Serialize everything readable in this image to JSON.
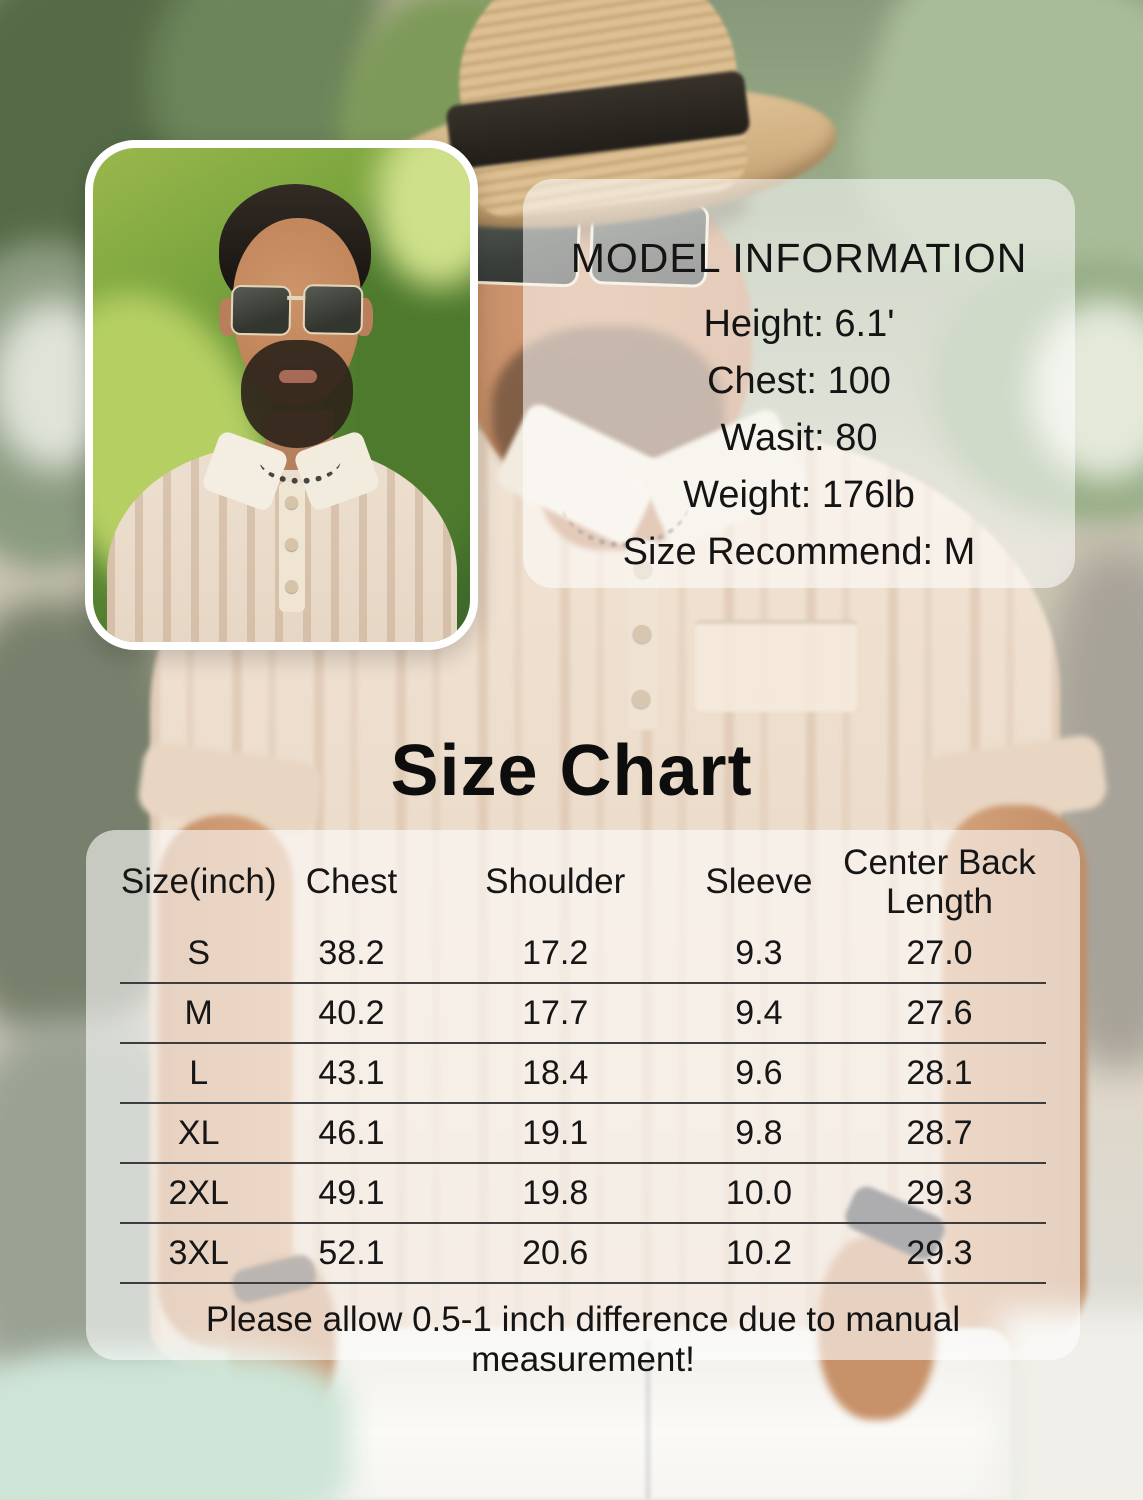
{
  "model_info": {
    "title": "MODEL INFORMATION",
    "height": "Height: 6.1'",
    "chest": "Chest: 100",
    "waist": "Wasit: 80",
    "weight": "Weight: 176lb",
    "size_recommend": "Size Recommend: M"
  },
  "size_chart": {
    "title": "Size Chart",
    "columns": {
      "size": "Size(inch)",
      "chest": "Chest",
      "shoulder": "Shoulder",
      "sleeve": "Sleeve",
      "center_back": "Center Back Length"
    },
    "rows": [
      {
        "size": "S",
        "chest": "38.2",
        "shoulder": "17.2",
        "sleeve": "9.3",
        "center_back": "27.0"
      },
      {
        "size": "M",
        "chest": "40.2",
        "shoulder": "17.7",
        "sleeve": "9.4",
        "center_back": "27.6"
      },
      {
        "size": "L",
        "chest": "43.1",
        "shoulder": "18.4",
        "sleeve": "9.6",
        "center_back": "28.1"
      },
      {
        "size": "XL",
        "chest": "46.1",
        "shoulder": "19.1",
        "sleeve": "9.8",
        "center_back": "28.7"
      },
      {
        "size": "2XL",
        "chest": "49.1",
        "shoulder": "19.8",
        "sleeve": "10.0",
        "center_back": "29.3"
      },
      {
        "size": "3XL",
        "chest": "52.1",
        "shoulder": "20.6",
        "sleeve": "10.2",
        "center_back": "29.3"
      }
    ],
    "note": "Please allow 0.5-1 inch difference due to manual measurement!"
  },
  "colors": {
    "overlay_panel": "#ffffff",
    "text": "#141414",
    "table_divider": "#3d3d3d",
    "straw_hat": "#d2b183",
    "shirt_knit": "#ecdccb",
    "leaf_green": "#7e9a5a",
    "pool_aqua": "#cde4d7"
  }
}
